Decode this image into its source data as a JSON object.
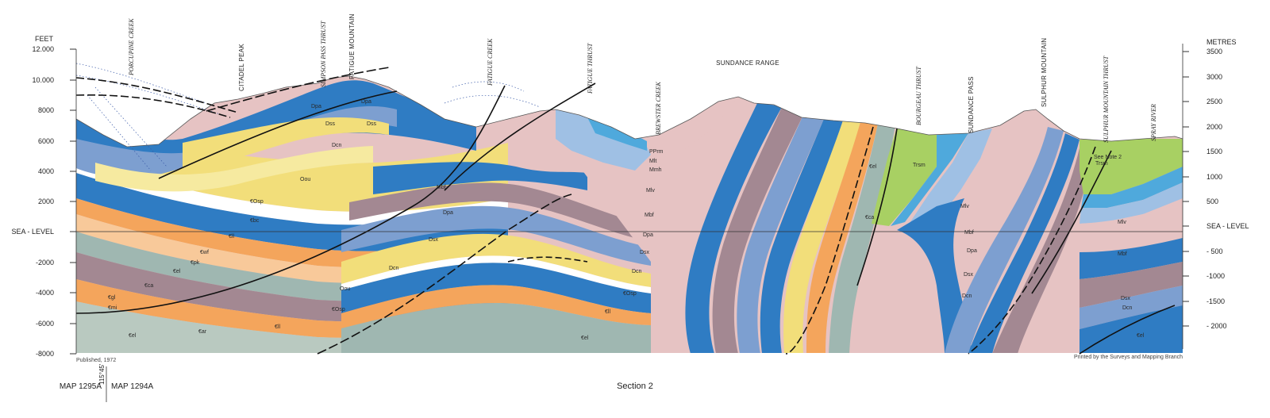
{
  "scale_left": {
    "unit": "FEET",
    "ticks": [
      "12.000",
      "10.000",
      "8000",
      "6000",
      "4000",
      "2000",
      "SEA - LEVEL",
      "-2000",
      "-4000",
      "-6000",
      "-8000"
    ]
  },
  "scale_right": {
    "unit": "METRES",
    "ticks": [
      "3500",
      "3000",
      "2500",
      "2000",
      "1500",
      "1000",
      "500",
      "SEA - LEVEL",
      "- 500",
      "-1000",
      "-1500",
      "- 2000"
    ]
  },
  "features": {
    "porcupine_creek": "PORCUPINE CREEK",
    "citadel_peak": "CITADEL PEAK",
    "simpson_pass_thrust": "SIMPSON PASS THRUST",
    "fatigue_mountain": "FATIGUE MOUNTAIN",
    "fatigue_creek": "FATIGUE CREEK",
    "fatigue_thrust": "FATIGUE THRUST",
    "sundance_range": "SUNDANCE RANGE",
    "brewster_creek": "BREWSTER CREEK",
    "bourgeau_thrust": "BOURGEAU THRUST",
    "sundance_pass": "SUNDANCE PASS",
    "sulphur_mountain": "SULPHUR MOUNTAIN",
    "sulphur_mountain_thrust": "SULPHUR MOUNTAIN THRUST",
    "spray_river": "SPRAY RIVER"
  },
  "units": {
    "dpa": "Dpa",
    "dss": "Dss",
    "dcn": "Dcn",
    "dmh": "Dmh",
    "oou": "Oou",
    "cosp": "€Osp",
    "cbc": "€bc",
    "cll": "€ll",
    "cel": "€el",
    "cca": "€ca",
    "cpk": "€pk",
    "cwf": "€wf",
    "car": "€ar",
    "cgl": "€gl",
    "cmi": "€mi",
    "mbf": "Mbf",
    "mlv": "Mlv",
    "dsx": "Dsx",
    "trsm": "Trsm",
    "pprm": "PPrm",
    "mmh": "Mmh",
    "mlt": "Mlt",
    "cst": "€st",
    "cca2": "€ca",
    "see_note": "See Note 2"
  },
  "footer": {
    "published": "Published, 1972",
    "printed": "Printed by the Surveys and Mapping Branch",
    "section": "Section 2",
    "map_left": "MAP 1295A",
    "map_right": "MAP 1294A",
    "longitude": "115°45'"
  },
  "colors": {
    "blue_dark": "#2f7cc3",
    "blue_mid": "#7d9fd0",
    "blue_light": "#9fc0e4",
    "sky": "#4fa9dc",
    "pink": "#e6c3c3",
    "mauve": "#a38892",
    "yellow": "#f2de7a",
    "yellow_pale": "#f6eaa0",
    "orange": "#f4a55c",
    "orange_pale": "#f8c99a",
    "teal_grey": "#9fb7b1",
    "grey_green": "#b9c9c0",
    "green": "#a8d063",
    "white_band": "#ffffff"
  }
}
